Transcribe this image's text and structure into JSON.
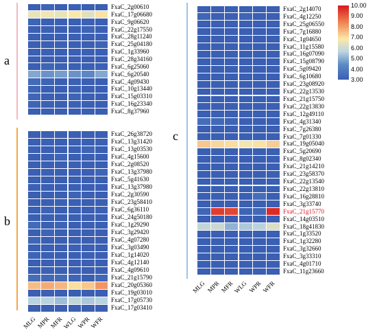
{
  "colors": {
    "low": "#3a5fb3",
    "mid": "#fbe8a8",
    "high": "#d7191c",
    "bar_a": "#f4b8c4",
    "bar_b": "#f5a840",
    "bar_c": "#9bc5ea"
  },
  "chart_data": [
    {
      "type": "heatmap",
      "panel": "a",
      "columns": [
        "MLG",
        "MPR",
        "MFR",
        "WLG",
        "WPR",
        "WFR"
      ],
      "rows": [
        "FxaC_2g00610",
        "FxaC_17g06680",
        "FxaC_9g06620",
        "FxaC_22g17550",
        "FxaC_28g11240",
        "FxaC_25g04180",
        "FxaC_1g33960",
        "FxaC_28g34160",
        "FxaC_6g25060",
        "FxaC_6g20540",
        "FxaC_4g09430",
        "FxaC_10g13440",
        "FxaC_15g03310",
        "FxaC_16g23340",
        "FxaC_8g37960"
      ],
      "values": [
        [
          3.0,
          3.2,
          3.0,
          3.1,
          3.0,
          3.0
        ],
        [
          5.6,
          5.7,
          5.6,
          5.8,
          5.5,
          5.9
        ],
        [
          3.2,
          3.0,
          3.1,
          3.0,
          3.1,
          3.0
        ],
        [
          3.0,
          3.1,
          3.0,
          3.0,
          3.2,
          3.0
        ],
        [
          3.1,
          3.0,
          3.0,
          3.1,
          3.0,
          3.1
        ],
        [
          3.0,
          3.0,
          3.1,
          3.0,
          3.0,
          3.2
        ],
        [
          3.0,
          3.1,
          3.0,
          3.0,
          3.1,
          3.0
        ],
        [
          3.1,
          3.0,
          3.0,
          3.1,
          3.0,
          3.0
        ],
        [
          3.0,
          3.2,
          3.1,
          3.0,
          3.0,
          3.1
        ],
        [
          4.6,
          4.4,
          4.5,
          4.4,
          4.3,
          4.6
        ],
        [
          3.5,
          3.2,
          3.0,
          3.1,
          3.0,
          3.0
        ],
        [
          3.2,
          3.0,
          3.0,
          3.1,
          3.0,
          3.0
        ],
        [
          3.3,
          3.0,
          3.0,
          3.2,
          3.0,
          3.0
        ],
        [
          3.2,
          3.1,
          3.0,
          3.1,
          3.0,
          3.0
        ],
        [
          3.0,
          3.0,
          3.0,
          3.0,
          3.0,
          3.0
        ]
      ]
    },
    {
      "type": "heatmap",
      "panel": "b",
      "columns": [
        "MLG",
        "MPR",
        "MFR",
        "WLG",
        "WPR",
        "WFR"
      ],
      "rows": [
        "FxaC_26g38720",
        "FxaC_13g31420",
        "FxaC_13g03530",
        "FxaC_4g15600",
        "FxaC_2g08520",
        "FxaC_13g37980",
        "FxaC_5g41630",
        "FxaC_13g37980",
        "FxaC_2g30590",
        "FxaC_23g58410",
        "FxaC_6g36110",
        "FxaC_24g50180",
        "FxaC_1g29290",
        "FxaC_3g29420",
        "FxaC_4g07280",
        "FxaC_3g03490",
        "FxaC_1g14020",
        "FxaC_4g12140",
        "FxaC_4g09610",
        "FxaC_21g15790",
        "FxaC_20g05360",
        "FxaC_19g03010",
        "FxaC_17g05730",
        "FxaC_17g03410"
      ],
      "values": [
        [
          3.0,
          3.0,
          3.1,
          3.0,
          3.0,
          3.0
        ],
        [
          3.0,
          3.1,
          3.0,
          3.0,
          3.0,
          3.1
        ],
        [
          3.1,
          3.0,
          3.0,
          3.0,
          3.2,
          3.0
        ],
        [
          3.0,
          3.0,
          3.3,
          3.0,
          3.0,
          3.0
        ],
        [
          3.0,
          3.0,
          3.0,
          3.1,
          3.0,
          3.0
        ],
        [
          3.0,
          3.1,
          3.0,
          3.0,
          3.0,
          3.2
        ],
        [
          3.0,
          3.0,
          3.0,
          3.0,
          3.1,
          3.0
        ],
        [
          3.1,
          3.0,
          3.0,
          3.0,
          3.0,
          3.0
        ],
        [
          3.0,
          3.0,
          3.0,
          3.2,
          3.0,
          3.0
        ],
        [
          3.0,
          3.0,
          3.1,
          3.0,
          3.0,
          3.0
        ],
        [
          3.0,
          3.2,
          3.0,
          3.0,
          3.0,
          3.1
        ],
        [
          3.0,
          3.0,
          3.0,
          3.0,
          3.0,
          3.0
        ],
        [
          3.5,
          3.0,
          3.2,
          3.0,
          3.0,
          3.0
        ],
        [
          3.0,
          3.2,
          3.0,
          3.0,
          3.0,
          3.0
        ],
        [
          3.3,
          3.0,
          3.0,
          3.0,
          3.0,
          3.0
        ],
        [
          3.0,
          3.0,
          3.0,
          3.1,
          3.0,
          3.0
        ],
        [
          3.2,
          3.0,
          3.0,
          3.0,
          3.0,
          3.0
        ],
        [
          3.0,
          3.0,
          3.0,
          3.0,
          3.1,
          3.0
        ],
        [
          3.0,
          3.1,
          3.0,
          3.0,
          3.0,
          3.0
        ],
        [
          3.6,
          3.4,
          3.5,
          3.3,
          3.0,
          3.4
        ],
        [
          6.6,
          6.9,
          6.7,
          6.0,
          6.4,
          7.3
        ],
        [
          3.0,
          3.1,
          3.0,
          3.0,
          3.0,
          3.0
        ],
        [
          5.0,
          5.0,
          4.8,
          5.1,
          4.9,
          5.0
        ],
        [
          3.0,
          3.0,
          3.0,
          3.0,
          3.0,
          3.0
        ]
      ]
    },
    {
      "type": "heatmap",
      "panel": "c",
      "columns": [
        "MLG",
        "MPR",
        "MFR",
        "WLG",
        "WPR",
        "WFR"
      ],
      "rows": [
        "FxaC_2g14070",
        "FxaC_4g12250",
        "FxaC_25g06550",
        "FxaC_7g16880",
        "FxaC_1g04650",
        "FxaC_11g15580",
        "FxaC_16g07090",
        "FxaC_15g08790",
        "FxaC_5g09420",
        "FxaC_6g10680",
        "FxaC_23g08920",
        "FxaC_22g13530",
        "FxaC_21g15750",
        "FxaC_22g13830",
        "FxaC_12g49110",
        "FxaC_4g31340",
        "FxaC_7g26380",
        "FxaC_7g01330",
        "FxaC_19g05040",
        "FxaC_5g20690",
        "FxaC_8g02340",
        "FxaC_21g14210",
        "FxaC_23g58370",
        "FxaC_22g13540",
        "FxaC_22g13810",
        "FxaC_16g28810",
        "FxaC_3g33740",
        "FxaC_21g15770",
        "FxaC_14g03510",
        "FxaC_18g41830",
        "FxaC_1g33520",
        "FxaC_1g32280",
        "FxaC_3g32660",
        "FxaC_3g33310",
        "FxaC_4g01710",
        "FxaC_11g23660"
      ],
      "highlight_row": "FxaC_21g15770",
      "values": [
        [
          3.0,
          3.0,
          3.0,
          3.0,
          3.0,
          3.0
        ],
        [
          3.3,
          3.0,
          3.0,
          3.2,
          3.0,
          3.0
        ],
        [
          3.0,
          3.0,
          3.0,
          3.0,
          3.0,
          3.0
        ],
        [
          3.0,
          3.0,
          3.0,
          3.0,
          3.0,
          3.0
        ],
        [
          3.0,
          3.0,
          3.0,
          3.0,
          3.0,
          3.0
        ],
        [
          3.0,
          3.0,
          3.0,
          3.0,
          3.0,
          3.0
        ],
        [
          3.0,
          3.0,
          3.0,
          3.0,
          3.0,
          3.0
        ],
        [
          3.0,
          3.0,
          3.0,
          3.0,
          3.0,
          3.0
        ],
        [
          3.0,
          3.0,
          3.0,
          3.0,
          3.0,
          3.0
        ],
        [
          3.0,
          3.0,
          3.0,
          3.0,
          3.0,
          3.0
        ],
        [
          3.0,
          3.0,
          3.0,
          3.0,
          3.0,
          3.0
        ],
        [
          3.0,
          3.0,
          3.0,
          3.0,
          3.0,
          3.0
        ],
        [
          3.0,
          3.0,
          3.0,
          3.0,
          3.0,
          3.0
        ],
        [
          3.0,
          3.0,
          3.0,
          3.0,
          3.0,
          3.0
        ],
        [
          3.0,
          3.0,
          3.0,
          3.0,
          3.0,
          3.0
        ],
        [
          3.6,
          3.4,
          3.2,
          3.0,
          3.0,
          3.0
        ],
        [
          3.0,
          3.0,
          3.0,
          3.0,
          3.0,
          3.0
        ],
        [
          3.0,
          3.0,
          3.0,
          3.0,
          3.0,
          3.0
        ],
        [
          6.4,
          6.1,
          6.0,
          5.7,
          5.9,
          6.3
        ],
        [
          3.0,
          3.0,
          3.0,
          3.0,
          3.0,
          3.0
        ],
        [
          3.0,
          3.0,
          3.0,
          3.0,
          3.0,
          3.0
        ],
        [
          3.0,
          3.0,
          3.0,
          3.0,
          3.0,
          3.0
        ],
        [
          3.0,
          3.0,
          3.0,
          3.0,
          3.0,
          3.0
        ],
        [
          3.0,
          3.0,
          3.0,
          3.0,
          3.0,
          3.0
        ],
        [
          3.0,
          3.0,
          3.0,
          3.0,
          3.0,
          3.0
        ],
        [
          3.0,
          3.0,
          3.0,
          3.0,
          3.6,
          3.0
        ],
        [
          3.0,
          3.0,
          3.0,
          3.0,
          3.0,
          3.0
        ],
        [
          3.3,
          9.2,
          9.0,
          3.2,
          3.4,
          9.6
        ],
        [
          3.0,
          3.0,
          3.0,
          3.0,
          3.0,
          3.0
        ],
        [
          5.1,
          5.2,
          4.7,
          4.9,
          5.0,
          5.4
        ],
        [
          3.0,
          3.0,
          3.0,
          3.0,
          3.0,
          3.0
        ],
        [
          3.0,
          3.0,
          3.0,
          3.0,
          3.0,
          3.0
        ],
        [
          3.0,
          3.0,
          3.0,
          3.0,
          3.0,
          3.0
        ],
        [
          3.0,
          3.0,
          3.0,
          3.0,
          3.0,
          3.0
        ],
        [
          3.0,
          3.0,
          3.0,
          3.0,
          3.0,
          3.0
        ],
        [
          3.0,
          3.0,
          3.0,
          3.0,
          3.0,
          3.0
        ]
      ]
    }
  ],
  "legend": {
    "ticks": [
      "10.00",
      "9.00",
      "8.00",
      "7.00",
      "6.00",
      "5.00",
      "4.00",
      "3.00"
    ],
    "min": 3,
    "max": 10
  }
}
